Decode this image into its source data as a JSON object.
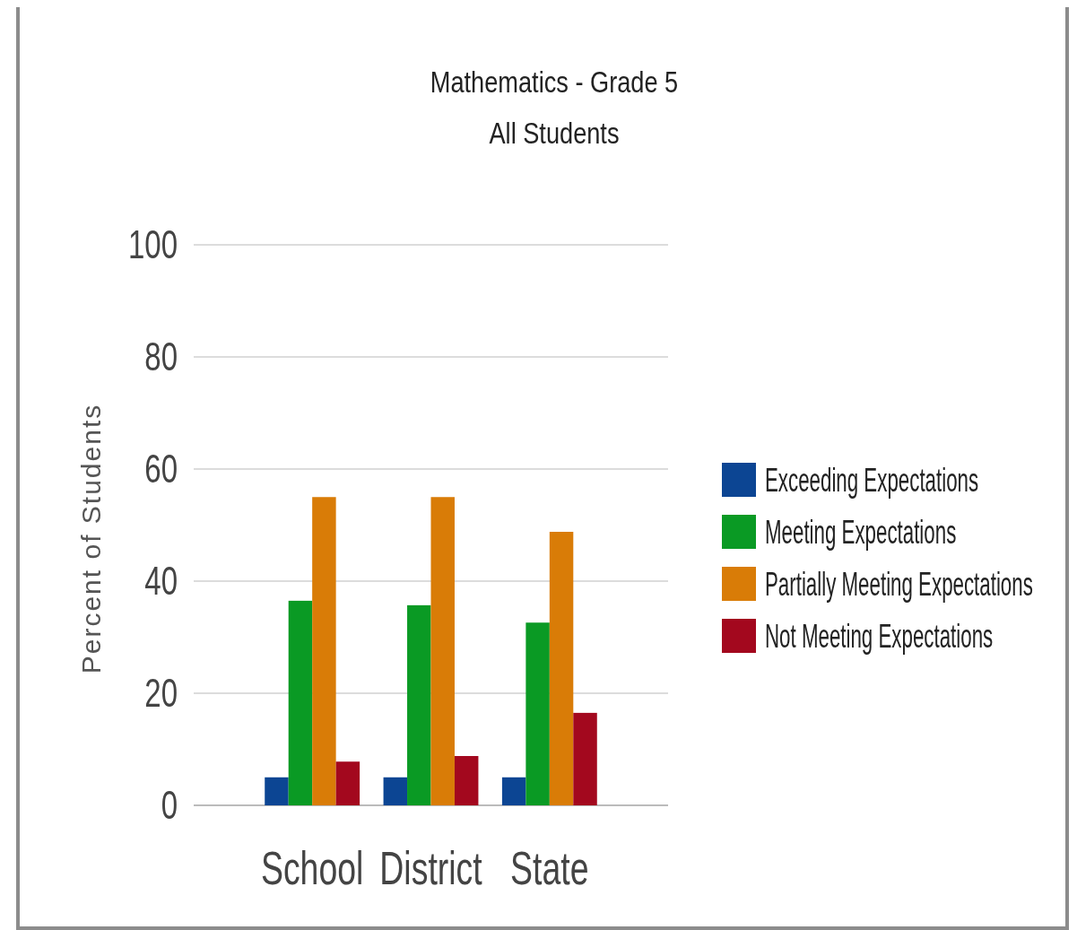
{
  "chart_data": {
    "type": "bar",
    "title": "Mathematics - Grade 5",
    "subtitle": "All Students",
    "ylabel": "Percent of Students",
    "categories": [
      "School",
      "District",
      "State"
    ],
    "series": [
      {
        "name": "Exceeding Expectations",
        "color": "#0c4593",
        "values": [
          5,
          5,
          5
        ]
      },
      {
        "name": "Meeting Expectations",
        "color": "#0a9a24",
        "values": [
          36.5,
          35.7,
          32.6
        ]
      },
      {
        "name": "Partially Meeting Expectations",
        "color": "#d97c07",
        "values": [
          55,
          55,
          48.8
        ]
      },
      {
        "name": "Not Meeting Expectations",
        "color": "#a3081e",
        "values": [
          7.8,
          8.8,
          16.5
        ]
      }
    ],
    "ylim": [
      0,
      100
    ],
    "yticks": [
      0,
      20,
      40,
      60,
      80,
      100
    ],
    "grid": "y",
    "legend": "right"
  }
}
